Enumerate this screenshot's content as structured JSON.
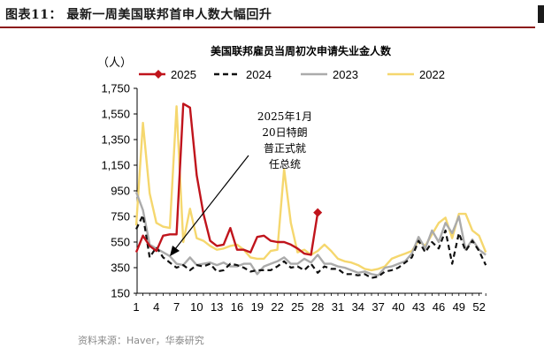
{
  "figure_title": "图表11：  最新一周美国联邦首申人数大幅回升",
  "source": "资料来源：Haver，华泰研究",
  "chart_data": {
    "type": "line",
    "title": "美国联邦雇员当周初次申请失业金人数",
    "ylabel": "（人）",
    "ylim": [
      150,
      1750
    ],
    "yticks": [
      150,
      350,
      550,
      750,
      950,
      1150,
      1350,
      1550,
      1750
    ],
    "ytick_labels": [
      "150",
      "350",
      "550",
      "750",
      "950",
      "1,150",
      "1,350",
      "1,550",
      "1,750"
    ],
    "xlim": [
      1,
      53
    ],
    "xticks": [
      1,
      4,
      7,
      10,
      13,
      16,
      19,
      22,
      25,
      28,
      31,
      34,
      37,
      40,
      43,
      46,
      49,
      52
    ],
    "legend_position": "top",
    "annotation": [
      "2025年1月",
      "20日特朗",
      "普正式就",
      "任总统"
    ],
    "series": [
      {
        "name": "2025",
        "color": "#c0141c",
        "style": "solid-marker-end",
        "x": [
          1,
          2,
          3,
          4,
          5,
          6,
          7,
          8,
          9,
          10,
          11,
          12,
          13,
          14,
          15,
          16,
          17,
          18,
          19,
          20,
          21,
          22,
          23,
          24,
          25,
          26,
          27,
          28
        ],
        "y": [
          470,
          600,
          520,
          480,
          600,
          610,
          610,
          1630,
          1600,
          1070,
          770,
          560,
          520,
          530,
          660,
          490,
          490,
          470,
          590,
          600,
          560,
          550,
          550,
          530,
          500,
          460,
          450,
          780
        ]
      },
      {
        "name": "2024",
        "color": "#111111",
        "style": "dashed",
        "x": [
          1,
          2,
          3,
          4,
          5,
          6,
          7,
          8,
          9,
          10,
          11,
          12,
          13,
          14,
          15,
          16,
          17,
          18,
          19,
          20,
          21,
          22,
          23,
          24,
          25,
          26,
          27,
          28,
          29,
          30,
          31,
          32,
          33,
          34,
          35,
          36,
          37,
          38,
          39,
          40,
          41,
          42,
          43,
          44,
          45,
          46,
          47,
          48,
          49,
          50,
          51,
          52,
          53
        ],
        "y": [
          650,
          760,
          430,
          510,
          430,
          390,
          350,
          370,
          330,
          370,
          360,
          380,
          320,
          330,
          380,
          370,
          350,
          320,
          330,
          330,
          330,
          360,
          400,
          350,
          360,
          330,
          380,
          310,
          360,
          340,
          340,
          300,
          300,
          290,
          300,
          270,
          280,
          320,
          330,
          350,
          390,
          430,
          560,
          470,
          550,
          500,
          640,
          380,
          620,
          480,
          560,
          480,
          370
        ]
      },
      {
        "name": "2023",
        "color": "#ababab",
        "style": "solid",
        "x": [
          1,
          2,
          3,
          4,
          5,
          6,
          7,
          8,
          9,
          10,
          11,
          12,
          13,
          14,
          15,
          16,
          17,
          18,
          19,
          20,
          21,
          22,
          23,
          24,
          25,
          26,
          27,
          28,
          29,
          30,
          31,
          32,
          33,
          34,
          35,
          36,
          37,
          38,
          39,
          40,
          41,
          42,
          43,
          44,
          45,
          46,
          47,
          48,
          49,
          50,
          51,
          52,
          53
        ],
        "y": [
          940,
          800,
          530,
          500,
          470,
          440,
          380,
          370,
          430,
          370,
          380,
          390,
          370,
          390,
          360,
          360,
          380,
          380,
          300,
          360,
          380,
          400,
          430,
          380,
          380,
          420,
          390,
          450,
          380,
          380,
          360,
          350,
          330,
          310,
          320,
          300,
          290,
          350,
          360,
          380,
          400,
          460,
          590,
          500,
          640,
          550,
          700,
          620,
          750,
          490,
          570,
          490,
          450
        ]
      },
      {
        "name": "2022",
        "color": "#f5d76e",
        "style": "solid",
        "x": [
          1,
          2,
          3,
          4,
          5,
          6,
          7,
          8,
          9,
          10,
          11,
          12,
          13,
          14,
          15,
          16,
          17,
          18,
          19,
          20,
          21,
          22,
          23,
          24,
          25,
          26,
          27,
          28,
          29,
          30,
          31,
          32,
          33,
          34,
          35,
          36,
          37,
          38,
          39,
          40,
          41,
          42,
          43,
          44,
          45,
          46,
          47,
          48,
          49,
          50,
          51,
          52,
          53
        ],
        "y": [
          680,
          1480,
          930,
          700,
          670,
          660,
          1610,
          550,
          810,
          580,
          560,
          520,
          490,
          500,
          520,
          530,
          490,
          430,
          420,
          420,
          480,
          490,
          1120,
          700,
          470,
          490,
          450,
          480,
          530,
          480,
          420,
          400,
          390,
          370,
          340,
          330,
          340,
          360,
          420,
          440,
          460,
          480,
          560,
          520,
          610,
          700,
          740,
          580,
          770,
          770,
          640,
          600,
          470
        ]
      }
    ]
  }
}
